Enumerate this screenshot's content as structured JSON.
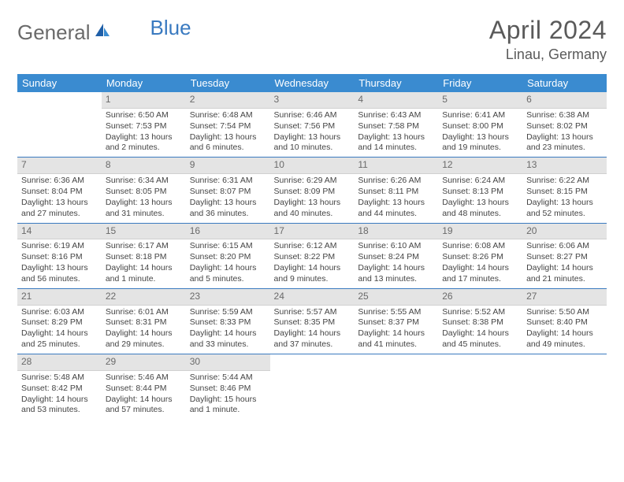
{
  "brand": {
    "part1": "General",
    "part2": "Blue"
  },
  "title": "April 2024",
  "location": "Linau, Germany",
  "colors": {
    "header_bg": "#3a8bd0",
    "header_text": "#ffffff",
    "daynum_bg": "#e4e4e4",
    "daynum_text": "#6a6a6a",
    "body_text": "#444444",
    "rule": "#3a7ac0",
    "logo_gray": "#6a6a6a",
    "logo_blue": "#3a7ac0",
    "page_bg": "#ffffff"
  },
  "typography": {
    "title_fontsize": 32,
    "location_fontsize": 18,
    "dayheader_fontsize": 13,
    "daynum_fontsize": 12,
    "cell_fontsize": 10.5
  },
  "day_headers": [
    "Sunday",
    "Monday",
    "Tuesday",
    "Wednesday",
    "Thursday",
    "Friday",
    "Saturday"
  ],
  "weeks": [
    [
      {
        "n": "",
        "sr": "",
        "ss": "",
        "dl": ""
      },
      {
        "n": "1",
        "sr": "Sunrise: 6:50 AM",
        "ss": "Sunset: 7:53 PM",
        "dl": "Daylight: 13 hours and 2 minutes."
      },
      {
        "n": "2",
        "sr": "Sunrise: 6:48 AM",
        "ss": "Sunset: 7:54 PM",
        "dl": "Daylight: 13 hours and 6 minutes."
      },
      {
        "n": "3",
        "sr": "Sunrise: 6:46 AM",
        "ss": "Sunset: 7:56 PM",
        "dl": "Daylight: 13 hours and 10 minutes."
      },
      {
        "n": "4",
        "sr": "Sunrise: 6:43 AM",
        "ss": "Sunset: 7:58 PM",
        "dl": "Daylight: 13 hours and 14 minutes."
      },
      {
        "n": "5",
        "sr": "Sunrise: 6:41 AM",
        "ss": "Sunset: 8:00 PM",
        "dl": "Daylight: 13 hours and 19 minutes."
      },
      {
        "n": "6",
        "sr": "Sunrise: 6:38 AM",
        "ss": "Sunset: 8:02 PM",
        "dl": "Daylight: 13 hours and 23 minutes."
      }
    ],
    [
      {
        "n": "7",
        "sr": "Sunrise: 6:36 AM",
        "ss": "Sunset: 8:04 PM",
        "dl": "Daylight: 13 hours and 27 minutes."
      },
      {
        "n": "8",
        "sr": "Sunrise: 6:34 AM",
        "ss": "Sunset: 8:05 PM",
        "dl": "Daylight: 13 hours and 31 minutes."
      },
      {
        "n": "9",
        "sr": "Sunrise: 6:31 AM",
        "ss": "Sunset: 8:07 PM",
        "dl": "Daylight: 13 hours and 36 minutes."
      },
      {
        "n": "10",
        "sr": "Sunrise: 6:29 AM",
        "ss": "Sunset: 8:09 PM",
        "dl": "Daylight: 13 hours and 40 minutes."
      },
      {
        "n": "11",
        "sr": "Sunrise: 6:26 AM",
        "ss": "Sunset: 8:11 PM",
        "dl": "Daylight: 13 hours and 44 minutes."
      },
      {
        "n": "12",
        "sr": "Sunrise: 6:24 AM",
        "ss": "Sunset: 8:13 PM",
        "dl": "Daylight: 13 hours and 48 minutes."
      },
      {
        "n": "13",
        "sr": "Sunrise: 6:22 AM",
        "ss": "Sunset: 8:15 PM",
        "dl": "Daylight: 13 hours and 52 minutes."
      }
    ],
    [
      {
        "n": "14",
        "sr": "Sunrise: 6:19 AM",
        "ss": "Sunset: 8:16 PM",
        "dl": "Daylight: 13 hours and 56 minutes."
      },
      {
        "n": "15",
        "sr": "Sunrise: 6:17 AM",
        "ss": "Sunset: 8:18 PM",
        "dl": "Daylight: 14 hours and 1 minute."
      },
      {
        "n": "16",
        "sr": "Sunrise: 6:15 AM",
        "ss": "Sunset: 8:20 PM",
        "dl": "Daylight: 14 hours and 5 minutes."
      },
      {
        "n": "17",
        "sr": "Sunrise: 6:12 AM",
        "ss": "Sunset: 8:22 PM",
        "dl": "Daylight: 14 hours and 9 minutes."
      },
      {
        "n": "18",
        "sr": "Sunrise: 6:10 AM",
        "ss": "Sunset: 8:24 PM",
        "dl": "Daylight: 14 hours and 13 minutes."
      },
      {
        "n": "19",
        "sr": "Sunrise: 6:08 AM",
        "ss": "Sunset: 8:26 PM",
        "dl": "Daylight: 14 hours and 17 minutes."
      },
      {
        "n": "20",
        "sr": "Sunrise: 6:06 AM",
        "ss": "Sunset: 8:27 PM",
        "dl": "Daylight: 14 hours and 21 minutes."
      }
    ],
    [
      {
        "n": "21",
        "sr": "Sunrise: 6:03 AM",
        "ss": "Sunset: 8:29 PM",
        "dl": "Daylight: 14 hours and 25 minutes."
      },
      {
        "n": "22",
        "sr": "Sunrise: 6:01 AM",
        "ss": "Sunset: 8:31 PM",
        "dl": "Daylight: 14 hours and 29 minutes."
      },
      {
        "n": "23",
        "sr": "Sunrise: 5:59 AM",
        "ss": "Sunset: 8:33 PM",
        "dl": "Daylight: 14 hours and 33 minutes."
      },
      {
        "n": "24",
        "sr": "Sunrise: 5:57 AM",
        "ss": "Sunset: 8:35 PM",
        "dl": "Daylight: 14 hours and 37 minutes."
      },
      {
        "n": "25",
        "sr": "Sunrise: 5:55 AM",
        "ss": "Sunset: 8:37 PM",
        "dl": "Daylight: 14 hours and 41 minutes."
      },
      {
        "n": "26",
        "sr": "Sunrise: 5:52 AM",
        "ss": "Sunset: 8:38 PM",
        "dl": "Daylight: 14 hours and 45 minutes."
      },
      {
        "n": "27",
        "sr": "Sunrise: 5:50 AM",
        "ss": "Sunset: 8:40 PM",
        "dl": "Daylight: 14 hours and 49 minutes."
      }
    ],
    [
      {
        "n": "28",
        "sr": "Sunrise: 5:48 AM",
        "ss": "Sunset: 8:42 PM",
        "dl": "Daylight: 14 hours and 53 minutes."
      },
      {
        "n": "29",
        "sr": "Sunrise: 5:46 AM",
        "ss": "Sunset: 8:44 PM",
        "dl": "Daylight: 14 hours and 57 minutes."
      },
      {
        "n": "30",
        "sr": "Sunrise: 5:44 AM",
        "ss": "Sunset: 8:46 PM",
        "dl": "Daylight: 15 hours and 1 minute."
      },
      {
        "n": "",
        "sr": "",
        "ss": "",
        "dl": ""
      },
      {
        "n": "",
        "sr": "",
        "ss": "",
        "dl": ""
      },
      {
        "n": "",
        "sr": "",
        "ss": "",
        "dl": ""
      },
      {
        "n": "",
        "sr": "",
        "ss": "",
        "dl": ""
      }
    ]
  ]
}
